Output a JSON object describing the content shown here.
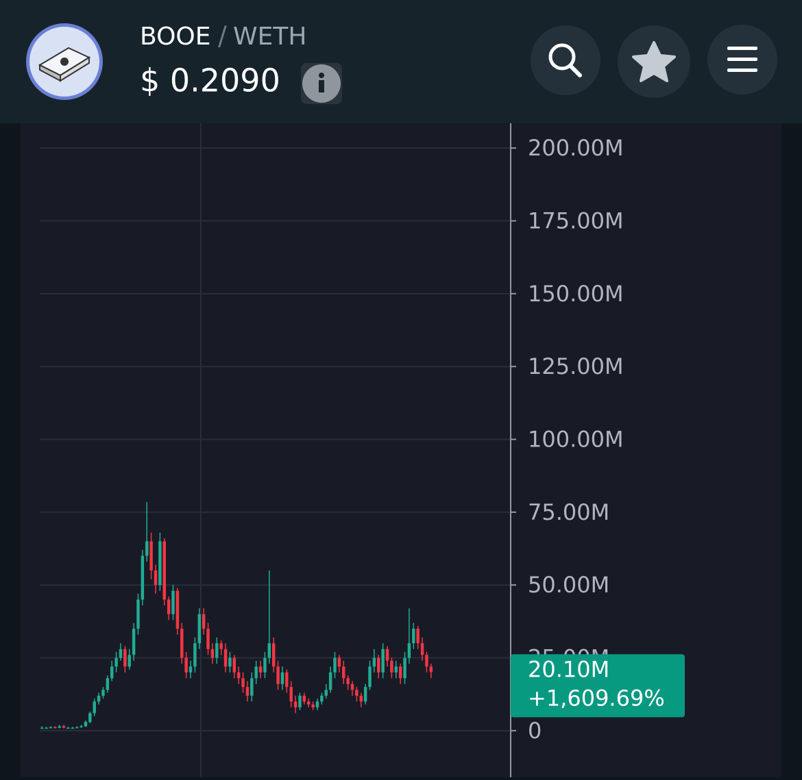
{
  "header": {
    "base": "BOOE",
    "separator": "/",
    "quote": "WETH",
    "price": "$ 0.2090"
  },
  "chart_data": {
    "type": "candlestick",
    "open": [
      1,
      1,
      1,
      1.2,
      1,
      1.5,
      1,
      1,
      1,
      1.2,
      1.5,
      3,
      6,
      10,
      12,
      14,
      18,
      22,
      25,
      28,
      22,
      26,
      35,
      45,
      60,
      65,
      55,
      50,
      65,
      45,
      40,
      48,
      35,
      25,
      20,
      22,
      30,
      40,
      35,
      28,
      25,
      30,
      28,
      22,
      25,
      20,
      18,
      15,
      12,
      18,
      22,
      20,
      25,
      30,
      22,
      16,
      20,
      15,
      10,
      8,
      12,
      10,
      9,
      8,
      10,
      12,
      14,
      20,
      25,
      22,
      18,
      16,
      14,
      12,
      10,
      15,
      22,
      25,
      20,
      28,
      24,
      20,
      22,
      18,
      25,
      30,
      35,
      30,
      26,
      22
    ],
    "high": [
      1.5,
      1.3,
      1.5,
      1.5,
      2,
      2,
      1.3,
      1.3,
      1.5,
      2,
      3.5,
      6.5,
      11,
      13,
      15,
      19,
      24,
      27,
      30,
      29,
      28,
      37,
      47,
      62,
      78.5,
      68,
      57,
      68,
      66,
      46,
      50,
      49,
      37,
      27,
      24,
      32,
      42,
      42,
      37,
      30,
      32,
      31,
      30,
      27,
      26,
      22,
      20,
      17,
      20,
      24,
      24,
      27,
      55,
      32,
      24,
      22,
      21,
      17,
      12,
      13,
      13,
      11,
      10,
      11,
      13,
      16,
      22,
      27,
      26,
      24,
      19,
      17,
      15,
      13,
      16,
      24,
      28,
      26,
      30,
      29,
      25,
      24,
      23,
      27,
      42,
      37,
      36,
      32,
      27,
      23
    ],
    "low": [
      0.8,
      0.8,
      0.8,
      0.8,
      0.8,
      0.8,
      0.8,
      0.8,
      0.8,
      1,
      1.3,
      2.5,
      5,
      9,
      11,
      13,
      17,
      20,
      24,
      20,
      21,
      24,
      33,
      43,
      58,
      52,
      47,
      48,
      43,
      38,
      38,
      33,
      23,
      18,
      18,
      20,
      28,
      33,
      26,
      23,
      23,
      26,
      20,
      20,
      18,
      16,
      13,
      10,
      10,
      16,
      18,
      18,
      23,
      20,
      14,
      14,
      13,
      8,
      6,
      7,
      9,
      8,
      7,
      7,
      9,
      11,
      13,
      18,
      20,
      16,
      14,
      12,
      10,
      8,
      9,
      14,
      20,
      18,
      18,
      22,
      18,
      18,
      16,
      16,
      23,
      28,
      28,
      24,
      20,
      18
    ],
    "close": [
      1,
      1,
      1.2,
      1,
      1.5,
      1,
      1,
      1,
      1.2,
      1.5,
      3,
      6,
      10,
      12,
      14,
      18,
      22,
      25,
      28,
      22,
      26,
      35,
      45,
      60,
      65,
      55,
      50,
      65,
      45,
      40,
      48,
      35,
      25,
      20,
      22,
      30,
      40,
      35,
      28,
      25,
      30,
      28,
      22,
      25,
      20,
      18,
      15,
      12,
      18,
      22,
      20,
      25,
      30,
      22,
      16,
      20,
      15,
      10,
      8,
      12,
      10,
      9,
      8,
      10,
      12,
      14,
      20,
      25,
      22,
      18,
      16,
      14,
      12,
      10,
      15,
      22,
      25,
      20,
      28,
      24,
      20,
      22,
      18,
      25,
      30,
      35,
      30,
      26,
      22,
      20.1
    ],
    "up_color": "#22ab94",
    "down_color": "#f23645",
    "ylim": [
      -16,
      208.5
    ],
    "yticks": [
      0,
      {
        "value": 25,
        "label": "25.00M"
      },
      {
        "value": 50,
        "label": "50.00M"
      },
      {
        "value": 75,
        "label": "75.00M"
      },
      {
        "value": 100,
        "label": "100.00M"
      },
      {
        "value": 125,
        "label": "125.00M"
      },
      {
        "value": 150,
        "label": "150.00M"
      },
      {
        "value": 175,
        "label": "175.00M"
      },
      {
        "value": 200,
        "label": "200.00M"
      }
    ],
    "grid": true,
    "last_value": 20.1,
    "last_value_label": "20.10M",
    "change_label": "+1,609.69%",
    "tag_color": "#089981"
  }
}
